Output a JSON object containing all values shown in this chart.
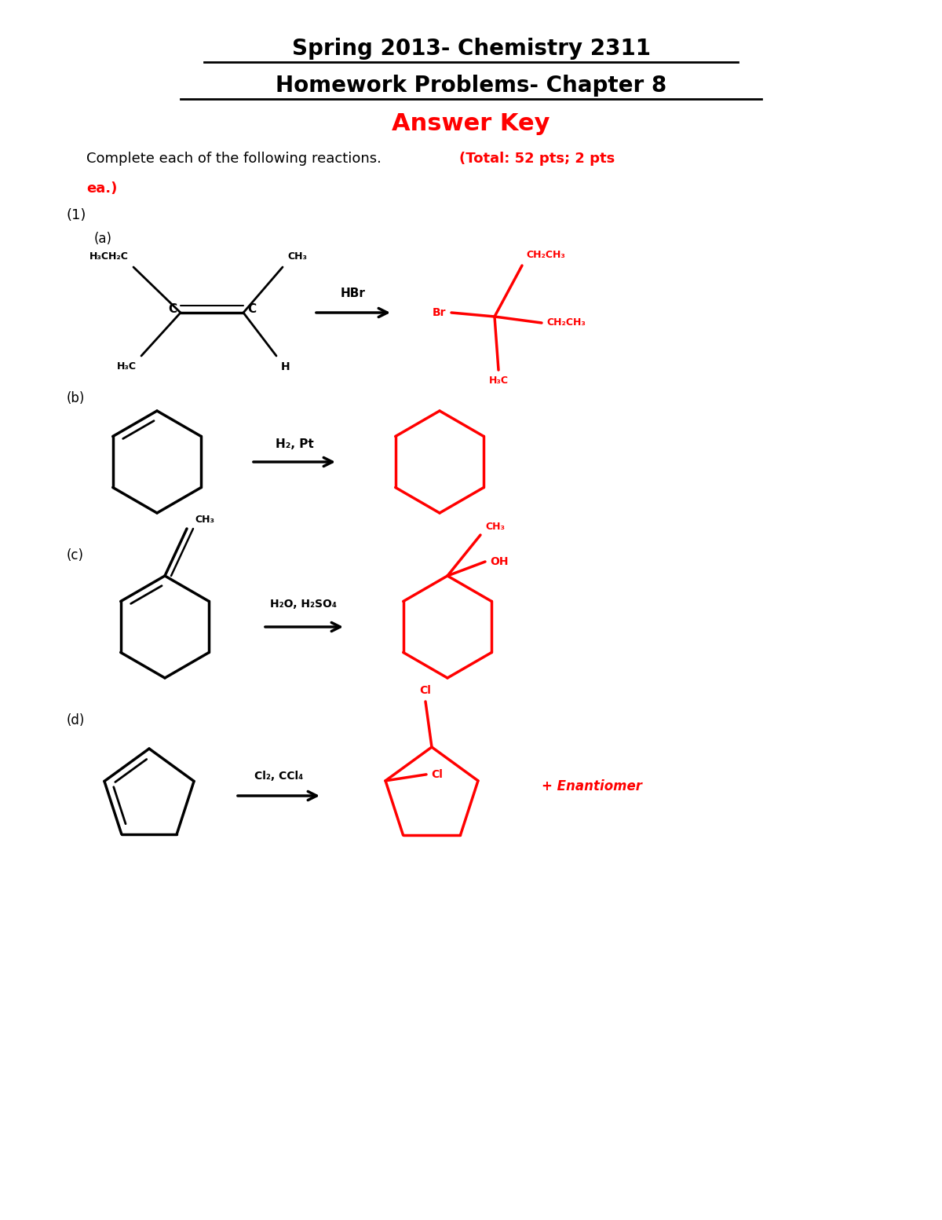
{
  "title_line1": "Spring 2013- Chemistry 2311",
  "title_line2": "Homework Problems- Chapter 8",
  "title_line3": "Answer Key",
  "intro_text1": "Complete each of the following reactions.",
  "intro_text2": "(Total: 52 pts; 2 pts",
  "intro_text3": "ea.)",
  "bg_color": "#ffffff",
  "black": "#000000",
  "red": "#ff0000"
}
